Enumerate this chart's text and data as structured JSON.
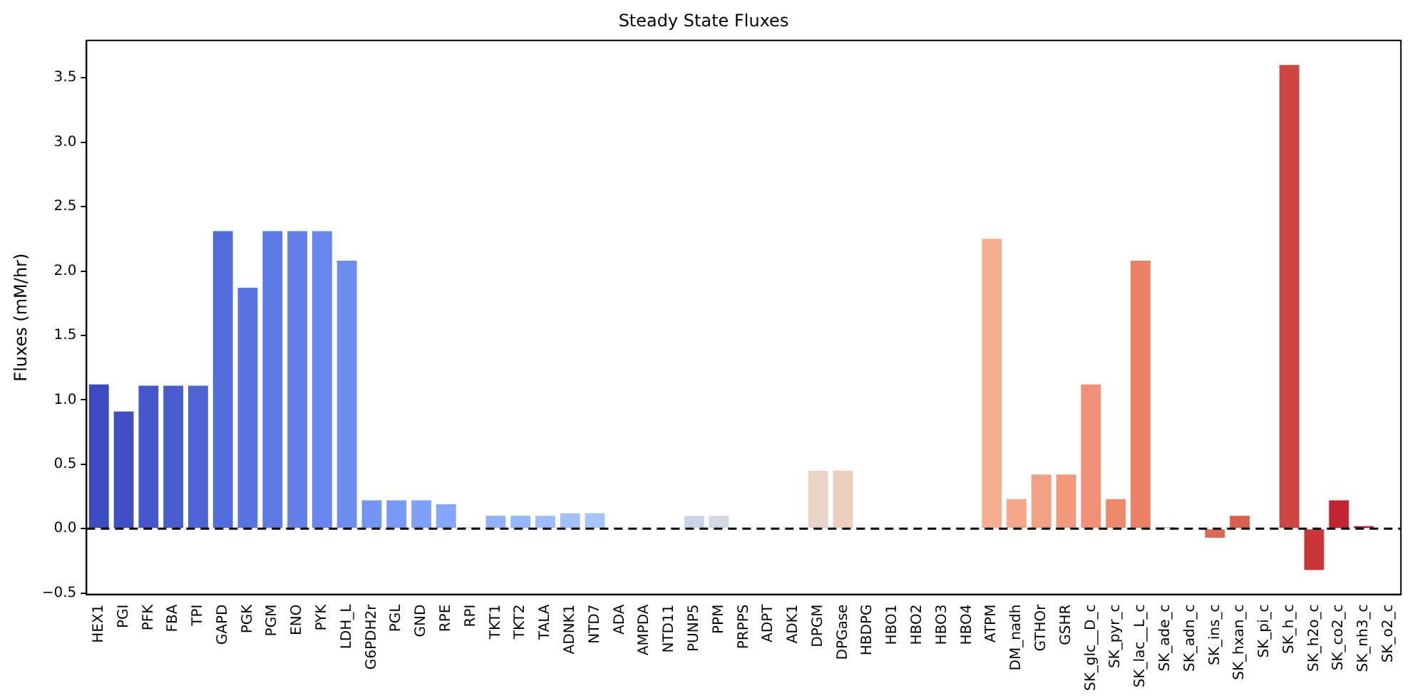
{
  "chart_data": {
    "type": "bar",
    "title": "Steady State Fluxes",
    "ylabel": "Fluxes (mM/hr)",
    "categories": [
      "HEX1",
      "PGI",
      "PFK",
      "FBA",
      "TPI",
      "GAPD",
      "PGK",
      "PGM",
      "ENO",
      "PYK",
      "LDH_L",
      "G6PDH2r",
      "PGL",
      "GND",
      "RPE",
      "RPI",
      "TKT1",
      "TKT2",
      "TALA",
      "ADNK1",
      "NTD7",
      "ADA",
      "AMPDA",
      "NTD11",
      "PUNP5",
      "PPM",
      "PRPPS",
      "ADPT",
      "ADK1",
      "DPGM",
      "DPGase",
      "HBDPG",
      "HBO1",
      "HBO2",
      "HBO3",
      "HBO4",
      "ATPM",
      "DM_nadh",
      "GTHOr",
      "GSHR",
      "SK_glc__D_c",
      "SK_pyr_c",
      "SK_lac__L_c",
      "SK_ade_c",
      "SK_adn_c",
      "SK_ins_c",
      "SK_hxan_c",
      "SK_pi_c",
      "SK_h_c",
      "SK_h2o_c",
      "SK_co2_c",
      "SK_nh3_c",
      "SK_o2_c"
    ],
    "values": [
      1.12,
      0.91,
      1.11,
      1.11,
      1.11,
      2.31,
      1.87,
      2.31,
      2.31,
      2.31,
      2.08,
      0.22,
      0.22,
      0.22,
      0.19,
      0.01,
      0.1,
      0.1,
      0.1,
      0.12,
      0.12,
      0,
      0,
      0,
      0.1,
      0.1,
      0,
      0,
      0,
      0.45,
      0.45,
      0,
      0,
      0,
      0,
      0,
      2.25,
      0.23,
      0.42,
      0.42,
      1.12,
      0.23,
      2.08,
      0.01,
      null,
      -0.07,
      0.1,
      0,
      3.6,
      -0.32,
      0.22,
      0.02,
      0
    ],
    "colors": [
      "#3b4cc0",
      "#404fc4",
      "#4456c9",
      "#495dcf",
      "#4e64d5",
      "#536cdc",
      "#5873e1",
      "#5d79e6",
      "#637fe9",
      "#6886ed",
      "#6d8cf1",
      "#7294f4",
      "#789af7",
      "#7e9ffa",
      "#84a5fc",
      "#8aabfe",
      "#8fb1fe",
      "#94b6fe",
      "#9bbcfe",
      "#a0c1fe",
      "#a6c5fd",
      "#abc8fd",
      "#b6ccf5",
      "#bfd0ef",
      "#cad4e9",
      "#d3d8e2",
      "#dddcdc",
      "#e1d9d5",
      "#e5d6ce",
      "#e9d2c7",
      "#edcfc0",
      "#f1ccb8",
      "#f3c6b1",
      "#f4c0a9",
      "#f5baa1",
      "#f6b499",
      "#f7ae91",
      "#f6a789",
      "#f4a082",
      "#f2987b",
      "#f19074",
      "#ef896d",
      "#ec8065",
      "#e8785f",
      "#e47059",
      "#e06752",
      "#dc5f4c",
      "#d85546",
      "#d0453f",
      "#c93539",
      "#c22432",
      "#bb142c",
      "#b40426"
    ],
    "ylim": [
      -0.51,
      3.79
    ],
    "yticks": [
      {
        "value": -0.5,
        "label": "−0.5"
      },
      {
        "value": 0,
        "label": "0.0"
      },
      {
        "value": 0.5,
        "label": "0.5"
      },
      {
        "value": 1,
        "label": "1.0"
      },
      {
        "value": 1.5,
        "label": "1.5"
      },
      {
        "value": 2,
        "label": "2.0"
      },
      {
        "value": 2.5,
        "label": "2.5"
      },
      {
        "value": 3,
        "label": "3.0"
      },
      {
        "value": 3.5,
        "label": "3.5"
      }
    ],
    "ref_lines": [
      {
        "axis": "y",
        "value": 0,
        "color": "#000000",
        "line_style": "dashed"
      }
    ],
    "grid": false,
    "legend": false
  }
}
